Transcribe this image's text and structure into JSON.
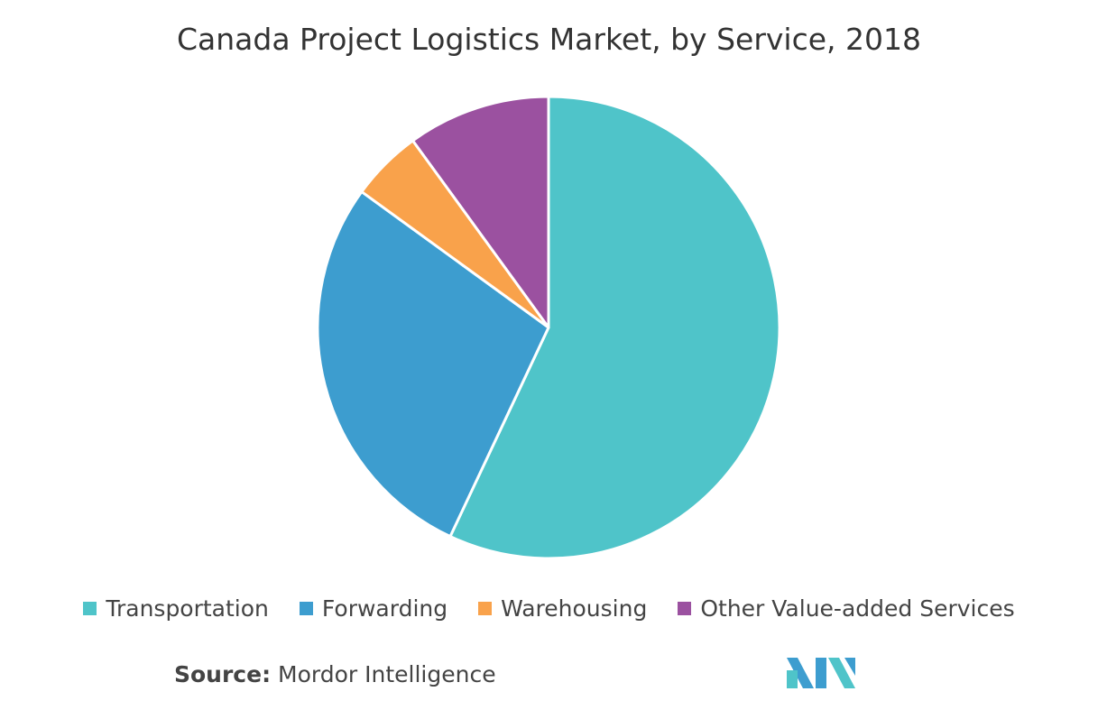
{
  "chart_data": {
    "type": "pie",
    "title": "Canada Project Logistics Market, by Service, 2018",
    "categories": [
      "Transportation",
      "Forwarding",
      "Warehousing",
      "Other Value-added Services"
    ],
    "values": [
      57,
      28,
      5,
      10
    ],
    "colors": [
      "#4fc4c9",
      "#3d9dcf",
      "#f9a24b",
      "#9b51a0"
    ],
    "legend_position": "bottom"
  },
  "source": {
    "label": "Source:",
    "text": "Mordor Intelligence"
  },
  "logo": {
    "colors": [
      "#3d9dcf",
      "#4fc4c9"
    ]
  }
}
